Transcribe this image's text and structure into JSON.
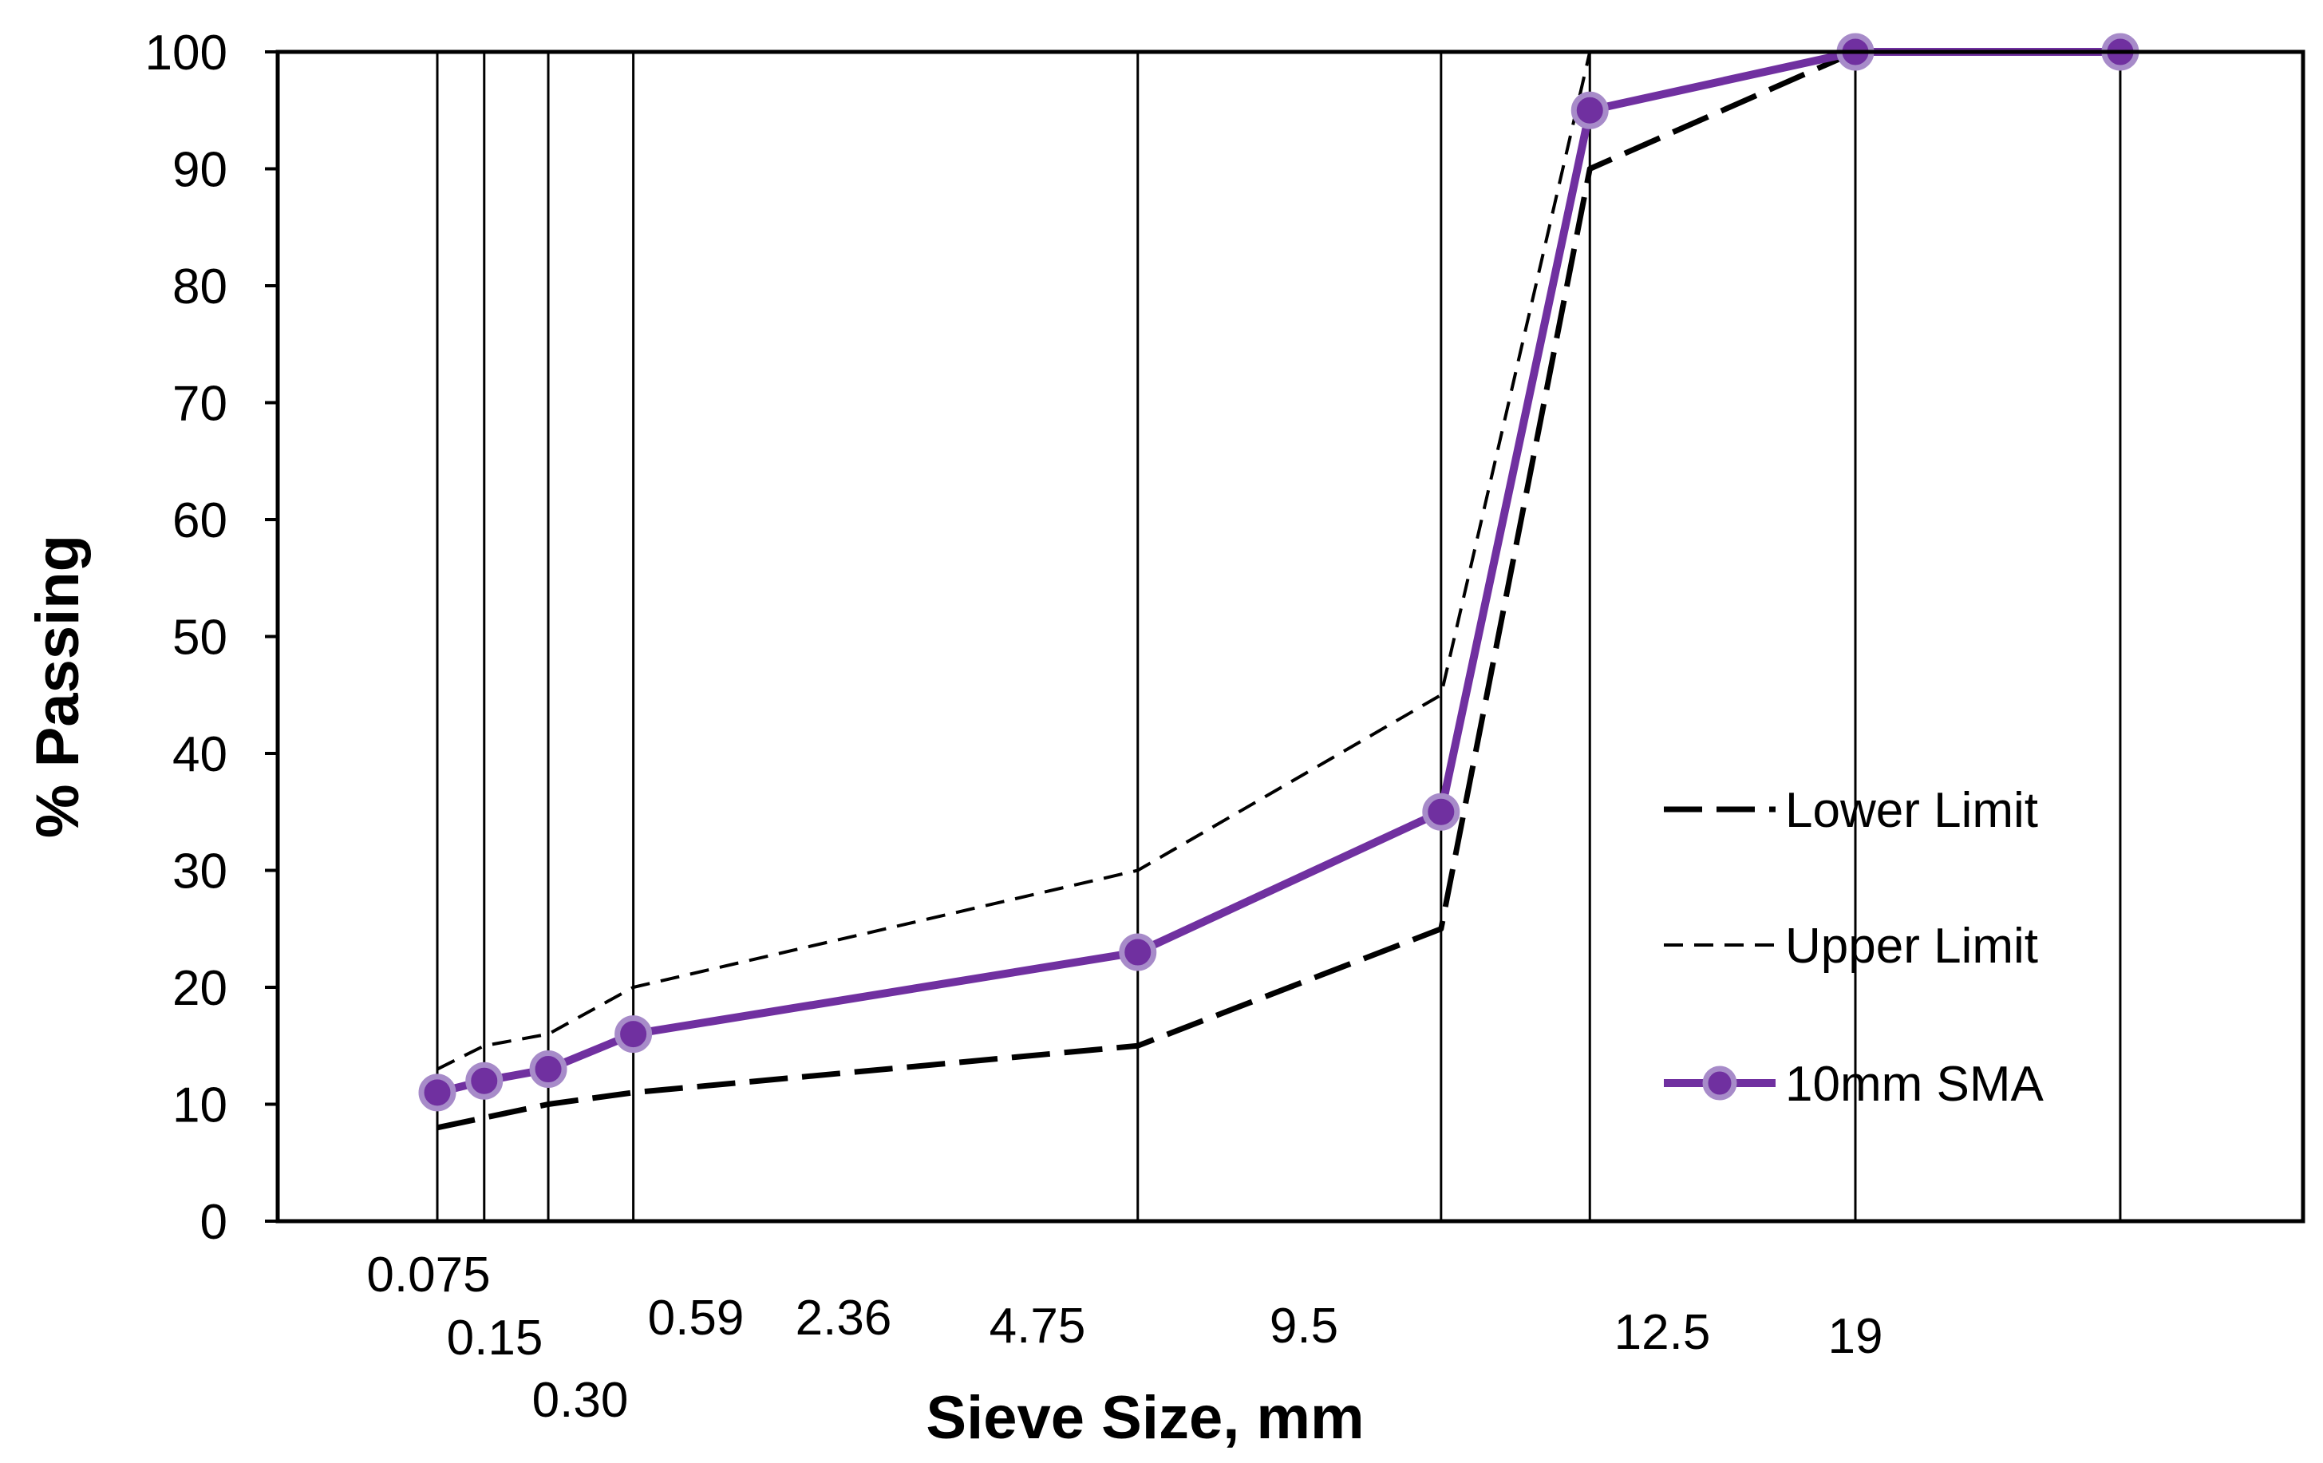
{
  "chart_data": {
    "type": "line",
    "title": "",
    "xlabel": "Sieve Size, mm",
    "ylabel": "% Passing",
    "ylim": [
      0,
      100
    ],
    "yticks": [
      0,
      10,
      20,
      30,
      40,
      50,
      60,
      70,
      80,
      90,
      100
    ],
    "sieve_sizes": [
      "0.075",
      "0.15",
      "0.30",
      "0.59",
      "2.36",
      "4.75",
      "9.5",
      "12.5",
      "19"
    ],
    "x_positions": [
      0.075,
      0.15,
      0.3,
      0.59,
      2.36,
      4.75,
      9.5,
      12.5,
      19
    ],
    "vertical_gridlines_at": [
      0.075,
      0.15,
      0.3,
      0.59,
      4.75,
      9.5,
      12.5,
      19,
      27
    ],
    "series": [
      {
        "name": "Lower Limit",
        "style": "long-dash",
        "color": "#000000",
        "x": [
          0.075,
          0.3,
          0.59,
          4.75,
          9.5,
          12.5,
          19
        ],
        "values": [
          8,
          10,
          11,
          15,
          25,
          90,
          100
        ]
      },
      {
        "name": "Upper Limit",
        "style": "short-dash",
        "color": "#000000",
        "x": [
          0.075,
          0.15,
          0.3,
          0.59,
          4.75,
          9.5,
          12.5
        ],
        "values": [
          13,
          15,
          16,
          20,
          30,
          45,
          100
        ]
      },
      {
        "name": "10mm SMA",
        "style": "solid-marker",
        "color": "#7030A0",
        "x": [
          0.075,
          0.15,
          0.3,
          0.59,
          4.75,
          9.5,
          12.5,
          19,
          27
        ],
        "values": [
          11,
          12,
          13,
          16,
          23,
          35,
          95,
          100,
          100
        ]
      }
    ],
    "legend_position": "right",
    "grid": "vertical lines at sieve sizes"
  }
}
